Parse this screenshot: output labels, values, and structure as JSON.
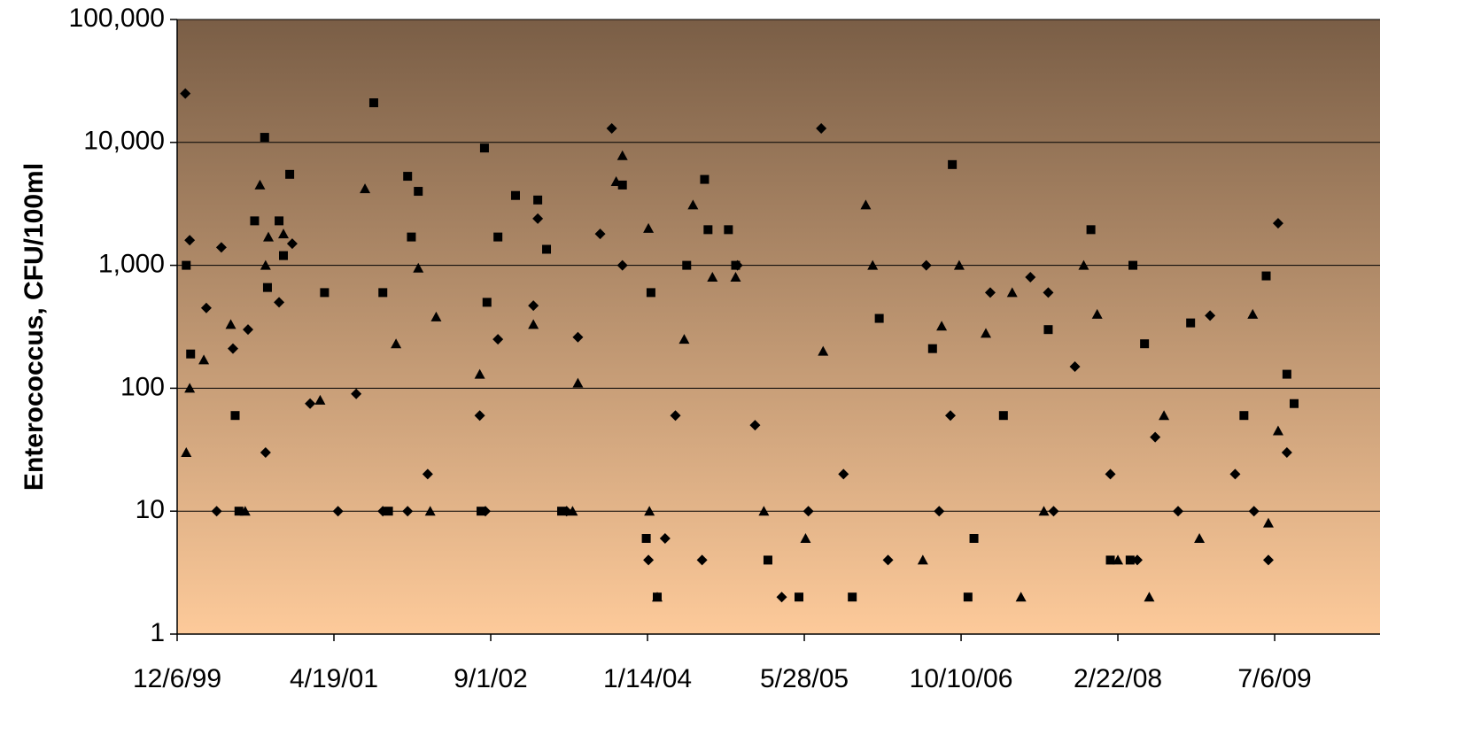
{
  "chart_data": {
    "type": "scatter",
    "y_label": "Enterococcus, CFU/100ml",
    "y_log": true,
    "grid": true,
    "background": [
      "#7a5e46",
      "#fdca9a"
    ],
    "xlim": [
      "1999-12-06",
      "2010-06-07"
    ],
    "xticks": [
      {
        "value": "1999-12-06",
        "label": "12/6/99"
      },
      {
        "value": "2001-04-19",
        "label": "4/19/01"
      },
      {
        "value": "2002-09-01",
        "label": "9/1/02"
      },
      {
        "value": "2004-01-14",
        "label": "1/14/04"
      },
      {
        "value": "2005-05-28",
        "label": "5/28/05"
      },
      {
        "value": "2006-10-10",
        "label": "10/10/06"
      },
      {
        "value": "2008-02-22",
        "label": "2/22/08"
      },
      {
        "value": "2009-07-06",
        "label": "7/6/09"
      }
    ],
    "ylim": [
      1,
      100000
    ],
    "yticks": [
      1,
      10,
      100,
      {
        "value": 1000,
        "label": "1,000"
      },
      {
        "value": 10000,
        "label": "10,000"
      },
      {
        "value": 100000,
        "label": "100,000"
      }
    ],
    "series": [
      {
        "marker": "diamond",
        "color": "#000000",
        "x": [
          "2000-01-01",
          "2000-01-15",
          "2000-03-08",
          "2000-04-25",
          "2000-06-01",
          "2000-07-19",
          "2000-09-13",
          "2000-10-26",
          "2000-12-07",
          "2001-02-02",
          "2001-05-02",
          "2001-06-29",
          "2001-09-22",
          "2002-02-12",
          "2002-07-28",
          "2002-09-24",
          "2003-01-15",
          "2003-01-29",
          "2003-06-06",
          "2003-08-16",
          "2003-09-22",
          "2003-10-26",
          "2004-01-17",
          "2004-04-12",
          "2004-07-06",
          "2004-10-27",
          "2004-12-22",
          "2005-03-17",
          "2005-07-21",
          "2005-09-30",
          "2006-02-19",
          "2006-06-21",
          "2006-09-06",
          "2007-01-11",
          "2007-05-19",
          "2007-07-15",
          "2007-10-08",
          "2008-01-29",
          "2008-04-24",
          "2008-06-20",
          "2008-12-12",
          "2009-03-02",
          "2009-06-16",
          "2009-07-17",
          "2009-08-14",
          "2000-04-10",
          "2001-12-10",
          "2002-08-15",
          "2003-05-01",
          "2004-03-10",
          "2005-06-10",
          "2006-08-01",
          "2007-08-01",
          "2008-09-01",
          "2009-05-01"
        ],
        "values": [
          25000,
          1600,
          450,
          1400,
          210,
          300,
          30,
          500,
          1500,
          75,
          10,
          90,
          10,
          20,
          60,
          250,
          470,
          2400,
          260,
          1800,
          13000,
          1000,
          4,
          60,
          4,
          1000,
          50,
          2,
          13000,
          20,
          4,
          1000,
          60,
          600,
          800,
          600,
          150,
          20,
          4,
          40,
          390,
          20,
          4,
          2200,
          30,
          10,
          10,
          10,
          10,
          6,
          10,
          10,
          10,
          10,
          10
        ]
      },
      {
        "marker": "square",
        "color": "#000000",
        "x": [
          "2000-01-04",
          "2000-01-18",
          "2000-06-08",
          "2000-08-09",
          "2000-09-10",
          "2000-09-19",
          "2000-10-26",
          "2000-11-09",
          "2000-11-29",
          "2001-03-20",
          "2001-08-24",
          "2001-09-22",
          "2001-12-10",
          "2001-12-22",
          "2002-01-13",
          "2002-08-12",
          "2002-08-20",
          "2002-09-24",
          "2002-11-19",
          "2003-01-29",
          "2003-02-26",
          "2003-10-26",
          "2004-01-25",
          "2004-02-14",
          "2004-05-18",
          "2004-07-14",
          "2004-07-25",
          "2004-09-28",
          "2004-10-21",
          "2005-05-11",
          "2005-10-28",
          "2006-01-22",
          "2006-07-11",
          "2006-09-12",
          "2006-11-01",
          "2007-02-22",
          "2007-07-15",
          "2007-11-28",
          "2008-01-29",
          "2008-04-10",
          "2008-05-17",
          "2008-10-11",
          "2009-03-30",
          "2009-06-09",
          "2009-08-14",
          "2009-09-06",
          "2000-06-20",
          "2001-10-10",
          "2002-08-01",
          "2003-04-15",
          "2004-01-10",
          "2005-02-01",
          "2006-11-20",
          "2008-04-01"
        ],
        "values": [
          1000,
          190,
          60,
          2300,
          11000,
          660,
          2300,
          1200,
          5500,
          600,
          21000,
          600,
          5300,
          1700,
          4000,
          9000,
          500,
          1700,
          3700,
          3400,
          1350,
          4500,
          600,
          2,
          1000,
          5000,
          1950,
          1950,
          1000,
          2,
          2,
          370,
          210,
          6600,
          2,
          60,
          300,
          1950,
          4,
          1000,
          230,
          340,
          60,
          820,
          130,
          75,
          10,
          10,
          10,
          10,
          6,
          4,
          6,
          4
        ]
      },
      {
        "marker": "triangle",
        "color": "#000000",
        "x": [
          "2000-01-04",
          "2000-01-15",
          "2000-02-29",
          "2000-05-25",
          "2000-08-26",
          "2000-09-13",
          "2000-09-22",
          "2000-11-09",
          "2001-03-06",
          "2001-07-27",
          "2001-11-03",
          "2002-01-13",
          "2002-03-11",
          "2002-07-28",
          "2003-01-15",
          "2003-06-06",
          "2003-10-06",
          "2003-10-26",
          "2004-01-17",
          "2004-02-14",
          "2004-05-10",
          "2004-06-07",
          "2004-08-08",
          "2004-10-21",
          "2005-01-19",
          "2005-07-27",
          "2005-12-10",
          "2006-01-01",
          "2006-08-09",
          "2006-10-04",
          "2006-12-28",
          "2007-03-22",
          "2007-04-19",
          "2007-11-05",
          "2007-12-18",
          "2008-02-22",
          "2008-07-18",
          "2008-11-08",
          "2009-04-27",
          "2009-06-16",
          "2009-07-17",
          "2000-07-10",
          "2002-02-20",
          "2003-05-20",
          "2004-01-20",
          "2005-06-01",
          "2006-06-10",
          "2007-07-01",
          "2008-06-01"
        ],
        "values": [
          30,
          100,
          170,
          330,
          4500,
          1000,
          1700,
          1800,
          80,
          4200,
          230,
          950,
          380,
          130,
          330,
          110,
          4800,
          7800,
          2000,
          2,
          250,
          3100,
          800,
          800,
          10,
          200,
          3100,
          1000,
          320,
          1000,
          280,
          600,
          2,
          1000,
          400,
          4,
          60,
          6,
          400,
          8,
          45,
          10,
          10,
          10,
          10,
          6,
          4,
          10,
          2
        ]
      }
    ]
  }
}
